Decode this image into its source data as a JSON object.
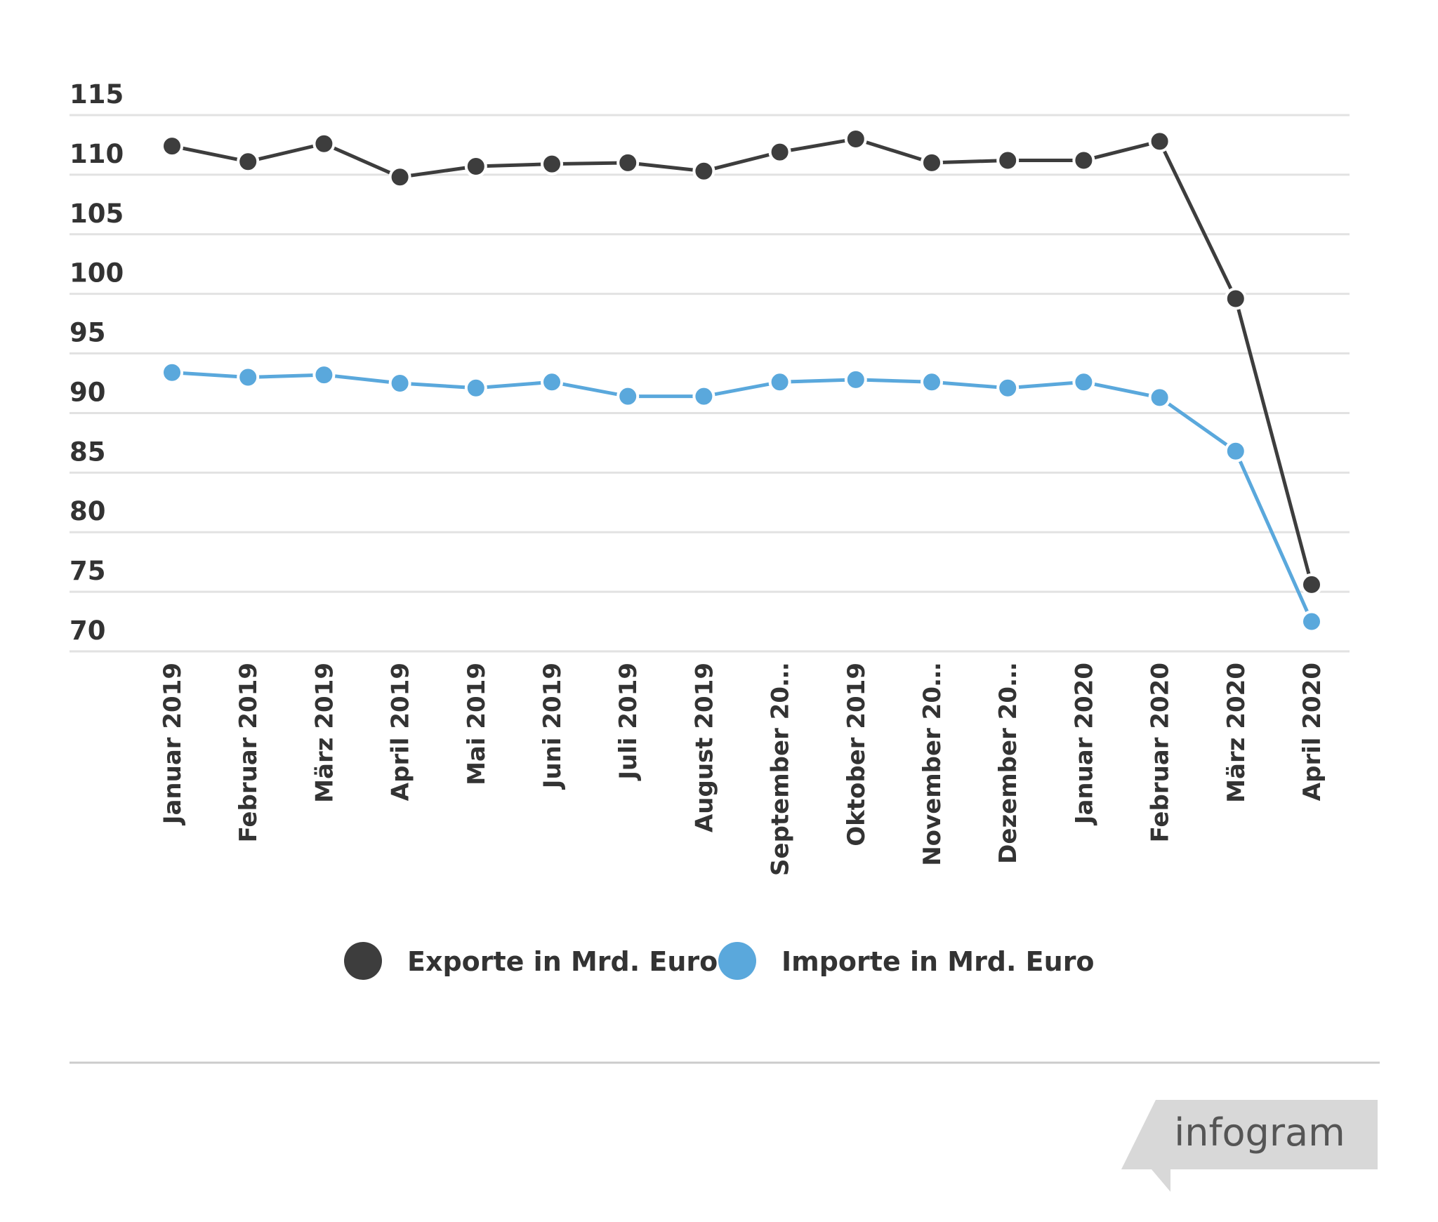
{
  "chart_data": {
    "type": "line",
    "title": "",
    "xlabel": "",
    "ylabel": "",
    "ylim": [
      70,
      115
    ],
    "y_ticks": [
      70,
      75,
      80,
      85,
      90,
      95,
      100,
      105,
      110,
      115
    ],
    "grid": true,
    "legend_position": "bottom-center",
    "categories": [
      "Januar 2019",
      "Februar 2019",
      "März 2019",
      "April 2019",
      "Mai 2019",
      "Juni 2019",
      "Juli 2019",
      "August 2019",
      "September 20…",
      "Oktober 2019",
      "November 20…",
      "Dezember 20…",
      "Januar 2020",
      "Februar 2020",
      "März 2020",
      "April 2020"
    ],
    "series": [
      {
        "name": "Exporte in Mrd. Euro",
        "color": "#3d3d3d",
        "values": [
          112.4,
          111.1,
          112.6,
          109.8,
          110.7,
          110.9,
          111.0,
          110.3,
          111.9,
          113.0,
          111.0,
          111.2,
          111.2,
          112.8,
          99.6,
          75.6
        ]
      },
      {
        "name": "Importe in Mrd. Euro",
        "color": "#5aa8dc",
        "values": [
          93.4,
          93.0,
          93.2,
          92.5,
          92.1,
          92.6,
          91.4,
          91.4,
          92.6,
          92.8,
          92.6,
          92.1,
          92.6,
          91.3,
          86.8,
          72.5
        ]
      }
    ]
  },
  "branding": {
    "logo_text": "infogram"
  }
}
